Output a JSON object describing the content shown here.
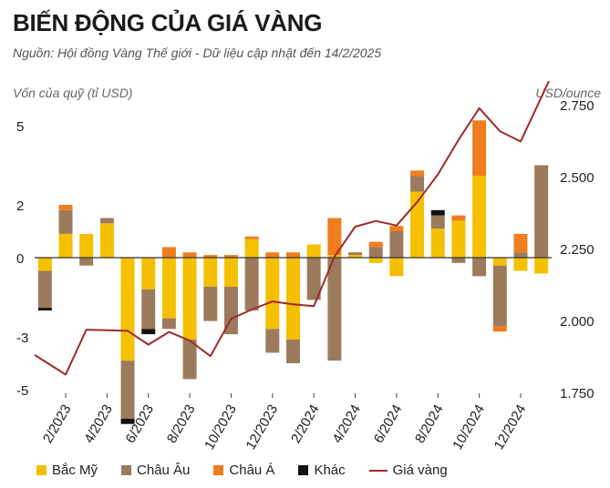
{
  "title": "BIẾN ĐỘNG CỦA GIÁ VÀNG",
  "subtitle": "Nguồn: Hội đồng Vàng Thế giới - Dữ liệu cập nhật đến 14/2/2025",
  "colors": {
    "Bắc Mỹ": "#f5c000",
    "Châu Âu": "#9c7a5c",
    "Châu Á": "#f07d1e",
    "Khác": "#111111",
    "Giá vàng": "#9e2a2b"
  },
  "chart_data": {
    "type": "bar",
    "stacked": true,
    "ylabel": "Vốn của quỹ (tỉ USD)",
    "y2label": "USD/ounce",
    "ylim": [
      -5,
      5
    ],
    "y_ticks": [
      5,
      2,
      0,
      -3,
      -5
    ],
    "y2lim": [
      1750,
      2800
    ],
    "y2_ticks": [
      2750,
      2500,
      2250,
      2000,
      1750
    ],
    "categories": [
      "1/2023",
      "2/2023",
      "3/2023",
      "4/2023",
      "5/2023",
      "6/2023",
      "7/2023",
      "8/2023",
      "9/2023",
      "10/2023",
      "11/2023",
      "12/2023",
      "1/2024",
      "2/2024",
      "3/2024",
      "4/2024",
      "5/2024",
      "6/2024",
      "7/2024",
      "8/2024",
      "9/2024",
      "10/2024",
      "11/2024",
      "12/2024",
      "1/2025"
    ],
    "x_tick_labels": [
      "2/2023",
      "4/2023",
      "6/2023",
      "8/2023",
      "10/2023",
      "12/2023",
      "2/2024",
      "4/2024",
      "6/2024",
      "8/2024",
      "10/2024",
      "12/2024"
    ],
    "series": [
      {
        "name": "Bắc Mỹ",
        "values": [
          -0.5,
          0.9,
          0.9,
          1.3,
          -3.9,
          -1.2,
          -2.3,
          -3.1,
          -1.1,
          -1.1,
          0.7,
          -2.7,
          -3.1,
          0.5,
          0.1,
          0.1,
          -0.2,
          -0.7,
          2.5,
          1.1,
          1.4,
          3.1,
          -0.3,
          -0.5,
          -0.6
        ]
      },
      {
        "name": "Châu Âu",
        "values": [
          -1.4,
          0.9,
          -0.3,
          0.2,
          -2.2,
          -1.5,
          -0.4,
          -1.5,
          -1.3,
          -1.8,
          -2.0,
          -0.9,
          -0.9,
          -1.6,
          -3.9,
          0.1,
          0.4,
          1.0,
          0.6,
          0.5,
          -0.2,
          -0.7,
          -2.3,
          0.2,
          3.5
        ]
      },
      {
        "name": "Châu Á",
        "values": [
          0,
          0.2,
          0,
          0,
          0,
          0,
          0.4,
          0.2,
          0.1,
          0.1,
          0.1,
          0.2,
          0.2,
          0,
          1.4,
          0,
          0.2,
          0.2,
          0.2,
          0,
          0.2,
          2.1,
          -0.2,
          0.7,
          0
        ]
      },
      {
        "name": "Khác",
        "values": [
          -0.1,
          0,
          0,
          0,
          -0.2,
          -0.2,
          0,
          0,
          0,
          0,
          0,
          0,
          0,
          0,
          0,
          0,
          0,
          0,
          0,
          0.2,
          0,
          0,
          0,
          0,
          0
        ]
      },
      {
        "name": "Giá vàng",
        "type": "line",
        "axis": "right",
        "values": [
          1880,
          1812,
          1968,
          1966,
          1964,
          1916,
          1960,
          1930,
          1876,
          2006,
          2038,
          2066,
          2056,
          2050,
          2222,
          2326,
          2346,
          2330,
          2412,
          2508,
          2628,
          2738,
          2658,
          2622,
          2832
        ]
      }
    ]
  }
}
